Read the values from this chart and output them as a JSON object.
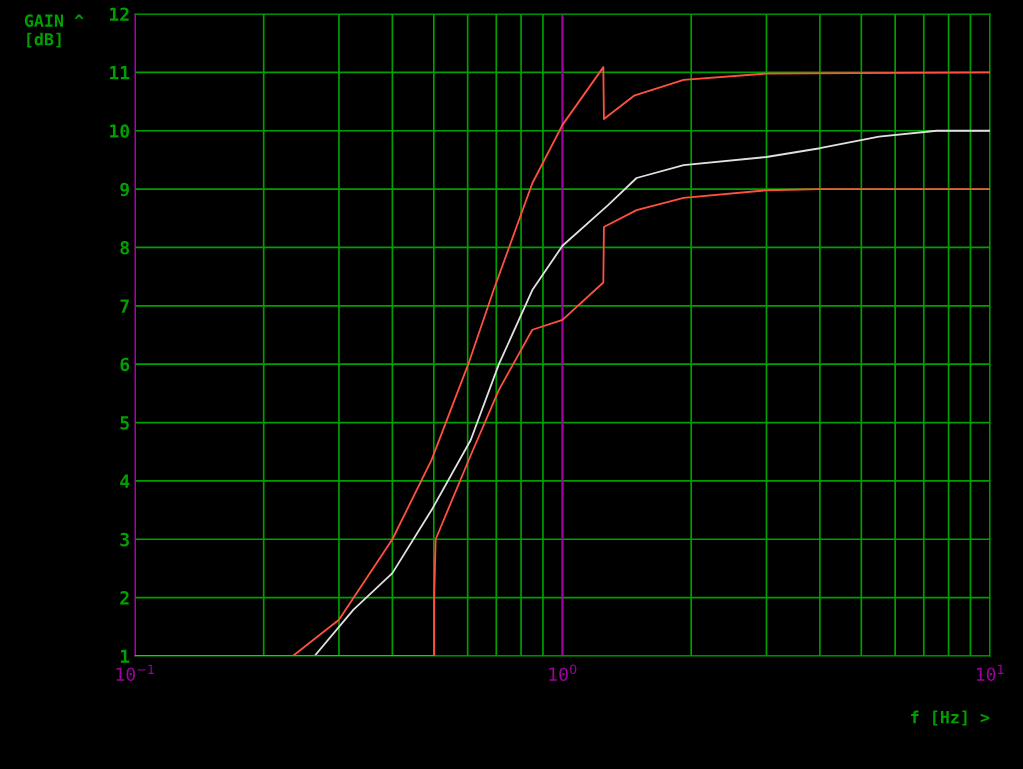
{
  "chart_data": {
    "type": "line",
    "xlabel": "f [Hz] >",
    "ylabel": "GAIN ^\n[dB]",
    "log": "x",
    "xlim": [
      0.1,
      10
    ],
    "xticks": [
      {
        "value": 0.1,
        "label": "10$^{−1}$"
      },
      {
        "value": 1,
        "label": "10$^{0}$"
      },
      {
        "value": 10,
        "label": "10$^{1}$"
      }
    ],
    "ylim": [
      1,
      12
    ],
    "yticks": [
      1,
      2,
      3,
      4,
      5,
      6,
      7,
      8,
      9,
      10,
      11,
      12
    ],
    "grid": true,
    "line_style": "solid",
    "marker": "none",
    "ref_lines": [
      {
        "axis": "x",
        "value": 1,
        "color": "#a000a0"
      }
    ],
    "series": [
      {
        "color": "#ff5040",
        "x": [
          0.1,
          0.234,
          0.3,
          0.4,
          0.494,
          0.602,
          0.69,
          0.85,
          1.0,
          1.246,
          1.25,
          1.47,
          1.92,
          3.0,
          10
        ],
        "values": [
          1,
          1,
          1.62,
          3.0,
          4.36,
          6.0,
          7.27,
          9.1,
          10.1,
          11.09,
          10.2,
          10.6,
          10.87,
          10.98,
          11
        ]
      },
      {
        "color": "#e0e0e0",
        "x": [
          0.263,
          0.324,
          0.4,
          0.494,
          0.61,
          0.71,
          0.85,
          1.0,
          1.28,
          1.49,
          1.92,
          3.0,
          4.0,
          5.5,
          7.5,
          10
        ],
        "values": [
          1,
          1.79,
          2.42,
          3.5,
          4.7,
          6.0,
          7.27,
          8.03,
          8.73,
          9.19,
          9.41,
          9.55,
          9.7,
          9.9,
          10.0,
          10.0
        ]
      },
      {
        "color": "#ff5040",
        "x": [
          0.1,
          0.501,
          0.501,
          0.505,
          0.61,
          0.71,
          0.85,
          1.0,
          1.246,
          1.25,
          1.49,
          1.92,
          3.0,
          4.0,
          10
        ],
        "values": [
          1,
          1,
          2,
          3,
          4.44,
          5.56,
          6.59,
          6.76,
          7.4,
          8.35,
          8.64,
          8.85,
          8.98,
          9,
          9
        ]
      }
    ]
  }
}
